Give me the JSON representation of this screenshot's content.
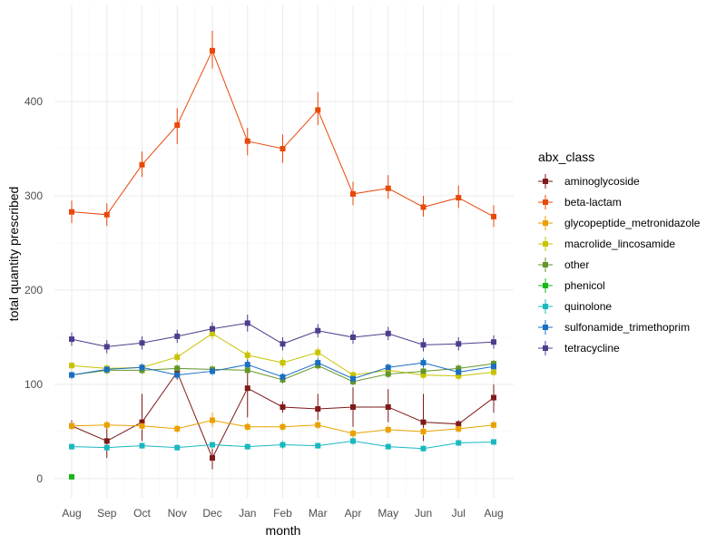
{
  "chart_data": {
    "type": "line",
    "xlabel": "month",
    "ylabel": "total quantity prescribed",
    "legend_title": "abx_class",
    "legend_position": "right",
    "grid": true,
    "ylim": [
      -10,
      480
    ],
    "yticks": [
      0,
      100,
      200,
      300,
      400
    ],
    "categories": [
      "Aug",
      "Sep",
      "Oct",
      "Nov",
      "Dec",
      "Jan",
      "Feb",
      "Mar",
      "Apr",
      "May",
      "Jun",
      "Jul",
      "Aug"
    ],
    "series": [
      {
        "name": "aminoglycoside",
        "color": "#7f1a1a",
        "values": [
          56,
          40,
          60,
          113,
          22,
          96,
          76,
          74,
          76,
          76,
          60,
          58,
          86
        ],
        "lower": [
          52,
          22,
          40,
          105,
          10,
          65,
          70,
          62,
          55,
          60,
          40,
          54,
          70
        ],
        "upper": [
          62,
          55,
          90,
          120,
          32,
          130,
          82,
          90,
          97,
          95,
          90,
          62,
          100
        ]
      },
      {
        "name": "beta-lactam",
        "color": "#e8480a",
        "values": [
          283,
          280,
          333,
          375,
          454,
          358,
          350,
          391,
          302,
          308,
          288,
          298,
          278
        ],
        "lower": [
          271,
          268,
          320,
          355,
          435,
          343,
          335,
          375,
          290,
          297,
          278,
          287,
          267
        ],
        "upper": [
          295,
          292,
          347,
          393,
          475,
          372,
          365,
          410,
          315,
          322,
          300,
          311,
          290
        ]
      },
      {
        "name": "glycopeptide_metronidazole",
        "color": "#e9a100",
        "values": [
          56,
          57,
          56,
          53,
          62,
          55,
          55,
          57,
          48,
          52,
          50,
          53,
          57
        ],
        "lower": [
          52,
          53,
          52,
          49,
          55,
          51,
          51,
          53,
          44,
          48,
          46,
          49,
          53
        ],
        "upper": [
          60,
          61,
          60,
          57,
          70,
          59,
          59,
          61,
          52,
          56,
          54,
          57,
          61
        ]
      },
      {
        "name": "macrolide_lincosamide",
        "color": "#c8c400",
        "values": [
          120,
          117,
          118,
          129,
          154,
          131,
          123,
          134,
          110,
          115,
          110,
          109,
          113
        ],
        "lower": [
          116,
          113,
          114,
          124,
          148,
          126,
          118,
          129,
          106,
          111,
          106,
          105,
          109
        ],
        "upper": [
          124,
          121,
          122,
          134,
          160,
          136,
          128,
          139,
          114,
          119,
          114,
          113,
          117
        ]
      },
      {
        "name": "other",
        "color": "#62962a",
        "values": [
          110,
          115,
          115,
          117,
          116,
          115,
          105,
          120,
          103,
          111,
          114,
          117,
          122
        ],
        "lower": [
          106,
          111,
          111,
          113,
          112,
          111,
          101,
          116,
          99,
          107,
          110,
          113,
          118
        ],
        "upper": [
          114,
          119,
          119,
          121,
          120,
          119,
          109,
          124,
          107,
          115,
          118,
          121,
          126
        ]
      },
      {
        "name": "phenicol",
        "color": "#1ab51a",
        "values": [
          2,
          null,
          null,
          null,
          null,
          null,
          null,
          null,
          null,
          null,
          null,
          null,
          null
        ],
        "lower": [
          2,
          null,
          null,
          null,
          null,
          null,
          null,
          null,
          null,
          null,
          null,
          null,
          null
        ],
        "upper": [
          2,
          null,
          null,
          null,
          null,
          null,
          null,
          null,
          null,
          null,
          null,
          null,
          null
        ]
      },
      {
        "name": "quinolone",
        "color": "#1ab8c0",
        "values": [
          34,
          33,
          35,
          33,
          36,
          34,
          36,
          35,
          40,
          34,
          32,
          38,
          39
        ],
        "lower": [
          31,
          30,
          32,
          30,
          33,
          31,
          32,
          32,
          36,
          31,
          29,
          35,
          36
        ],
        "upper": [
          37,
          36,
          38,
          36,
          39,
          37,
          40,
          38,
          44,
          37,
          35,
          41,
          42
        ]
      },
      {
        "name": "sulfonamide_trimethoprim",
        "color": "#1a6fc4",
        "values": [
          110,
          116,
          118,
          110,
          114,
          121,
          108,
          123,
          106,
          118,
          123,
          113,
          119
        ],
        "lower": [
          106,
          112,
          114,
          106,
          110,
          116,
          104,
          118,
          102,
          114,
          118,
          109,
          115
        ],
        "upper": [
          114,
          120,
          122,
          114,
          118,
          126,
          112,
          128,
          110,
          122,
          128,
          117,
          123
        ]
      },
      {
        "name": "tetracycline",
        "color": "#4f3d8c",
        "values": [
          148,
          140,
          144,
          151,
          159,
          165,
          143,
          157,
          150,
          154,
          142,
          143,
          145
        ],
        "lower": [
          141,
          133,
          137,
          144,
          152,
          156,
          136,
          150,
          143,
          147,
          135,
          136,
          138
        ],
        "upper": [
          155,
          147,
          151,
          158,
          166,
          174,
          150,
          164,
          157,
          161,
          149,
          150,
          152
        ]
      }
    ]
  }
}
